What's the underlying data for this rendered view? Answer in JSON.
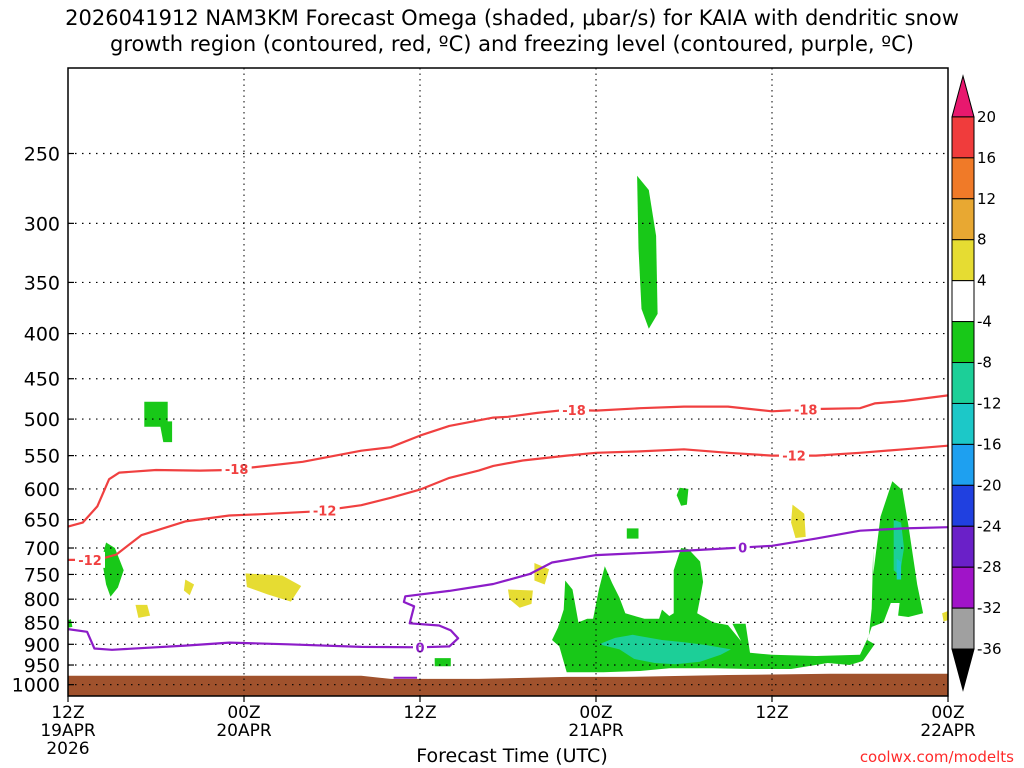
{
  "chart_data": {
    "type": "heatmap",
    "title": "2026041912 NAM3KM Forecast Omega (shaded, μbar/s) for KAIA with dendritic snow growth region (contoured, red, ºC) and freezing level (contoured, purple, ºC)",
    "title_lines": [
      "2026041912 NAM3KM Forecast Omega (shaded, μbar/s) for KAIA with dendritic snow",
      "growth region (contoured, red, ºC) and freezing level (contoured, purple, ºC)"
    ],
    "xlabel": "Forecast Time (UTC)",
    "ylabel": "",
    "x_range_hours": [
      0,
      60
    ],
    "y_range_hpa": [
      1030,
      200
    ],
    "y_scale": "log-pressure (inverted)",
    "grid": "dotted horizontal at each pressure level",
    "y_ticks": [
      250,
      300,
      350,
      400,
      450,
      500,
      550,
      600,
      650,
      700,
      750,
      800,
      850,
      900,
      950,
      1000
    ],
    "x_ticks": [
      {
        "hour": 0,
        "lines": [
          "12Z",
          "19APR",
          "2026"
        ]
      },
      {
        "hour": 12,
        "lines": [
          "00Z",
          "20APR"
        ]
      },
      {
        "hour": 24,
        "lines": [
          "12Z"
        ]
      },
      {
        "hour": 36,
        "lines": [
          "00Z",
          "21APR"
        ]
      },
      {
        "hour": 48,
        "lines": [
          "12Z"
        ]
      },
      {
        "hour": 60,
        "lines": [
          "00Z",
          "22APR"
        ]
      }
    ],
    "colorbar": {
      "unit": "μbar/s",
      "ticks": [
        20,
        16,
        12,
        8,
        4,
        -4,
        -8,
        -12,
        -16,
        -20,
        -24,
        -28,
        -32,
        -36
      ],
      "bins": [
        {
          "from": 20,
          "to": 24,
          "color": "#e8186e"
        },
        {
          "from": 16,
          "to": 20,
          "color": "#f03c3c"
        },
        {
          "from": 12,
          "to": 16,
          "color": "#f07a28"
        },
        {
          "from": 8,
          "to": 12,
          "color": "#e8a832"
        },
        {
          "from": 4,
          "to": 8,
          "color": "#e6dc32"
        },
        {
          "from": -4,
          "to": 4,
          "color": "#ffffff"
        },
        {
          "from": -8,
          "to": -4,
          "color": "#18c818"
        },
        {
          "from": -12,
          "to": -8,
          "color": "#1ccf98"
        },
        {
          "from": -16,
          "to": -12,
          "color": "#1cc8c8"
        },
        {
          "from": -20,
          "to": -16,
          "color": "#1ea0f0"
        },
        {
          "from": -24,
          "to": -20,
          "color": "#2040e0"
        },
        {
          "from": -28,
          "to": -24,
          "color": "#6a20c8"
        },
        {
          "from": -32,
          "to": -28,
          "color": "#a014c8"
        },
        {
          "from": -36,
          "to": -32,
          "color": "#a0a0a0"
        },
        {
          "from": -40,
          "to": -36,
          "color": "#000000"
        }
      ]
    },
    "contours": [
      {
        "name": "-18",
        "label": "-18",
        "color": "#f04040",
        "points": [
          [
            0,
            662
          ],
          [
            1,
            655
          ],
          [
            2,
            628
          ],
          [
            2.8,
            585
          ],
          [
            3.5,
            575
          ],
          [
            6,
            571
          ],
          [
            9,
            572
          ],
          [
            11,
            571
          ],
          [
            16,
            559
          ],
          [
            20,
            543
          ],
          [
            22,
            538
          ],
          [
            24,
            522
          ],
          [
            26,
            509
          ],
          [
            29,
            498
          ],
          [
            30,
            497
          ],
          [
            32,
            492
          ],
          [
            34,
            488
          ],
          [
            36,
            489
          ],
          [
            39,
            486
          ],
          [
            42,
            484
          ],
          [
            45,
            484
          ],
          [
            48,
            490
          ],
          [
            51,
            487
          ],
          [
            54,
            486
          ],
          [
            55,
            480
          ],
          [
            57,
            477
          ],
          [
            60,
            470
          ]
        ],
        "label_hours": [
          11.5,
          34.5,
          50.3
        ]
      },
      {
        "name": "-12",
        "label": "-12",
        "color": "#f04040",
        "points": [
          [
            0,
            722
          ],
          [
            2,
            722
          ],
          [
            3.3,
            712
          ],
          [
            5,
            677
          ],
          [
            8,
            653
          ],
          [
            11,
            643
          ],
          [
            13,
            641
          ],
          [
            17,
            636
          ],
          [
            20,
            626
          ],
          [
            22,
            614
          ],
          [
            24,
            601
          ],
          [
            26,
            583
          ],
          [
            28,
            572
          ],
          [
            29,
            565
          ],
          [
            31,
            557
          ],
          [
            34,
            550
          ],
          [
            36,
            546
          ],
          [
            39,
            544
          ],
          [
            42,
            541
          ],
          [
            45,
            546
          ],
          [
            48,
            550
          ],
          [
            51,
            550
          ],
          [
            54,
            546
          ],
          [
            57,
            541
          ],
          [
            60,
            536
          ]
        ],
        "label_hours": [
          1.5,
          17.5,
          49.5
        ]
      },
      {
        "name": "0",
        "label": "0",
        "color": "#8c1cc8",
        "points": [
          [
            0,
            865
          ],
          [
            1.3,
            871
          ],
          [
            1.8,
            910
          ],
          [
            3,
            913
          ],
          [
            8,
            903
          ],
          [
            11,
            896
          ],
          [
            15,
            900
          ],
          [
            20,
            906
          ],
          [
            24,
            907
          ],
          [
            26,
            905
          ],
          [
            26.6,
            886
          ],
          [
            26.1,
            868
          ],
          [
            25.3,
            857
          ],
          [
            23.3,
            852
          ],
          [
            23.6,
            815
          ],
          [
            22.9,
            806
          ],
          [
            23,
            794
          ],
          [
            26,
            783
          ],
          [
            29,
            769
          ],
          [
            31.5,
            749
          ],
          [
            33,
            727
          ],
          [
            36,
            713
          ],
          [
            40,
            708
          ],
          [
            44,
            702
          ],
          [
            48,
            696
          ],
          [
            51,
            683
          ],
          [
            54,
            669
          ],
          [
            57,
            665
          ],
          [
            60,
            663
          ]
        ],
        "label_hours": [
          24,
          46
        ]
      }
    ],
    "shaded_regions": [
      {
        "value_bin": -6,
        "hours": [
          [
            5.2,
            5.8
          ],
          [
            6.8,
            5.8
          ],
          [
            6.8,
            4.5
          ],
          [
            7.1,
            4.5
          ],
          [
            7.1,
            3.2
          ],
          [
            5.2,
            3.2
          ]
        ],
        "press_note": "~485-530 hPa"
      }
    ]
  }
}
